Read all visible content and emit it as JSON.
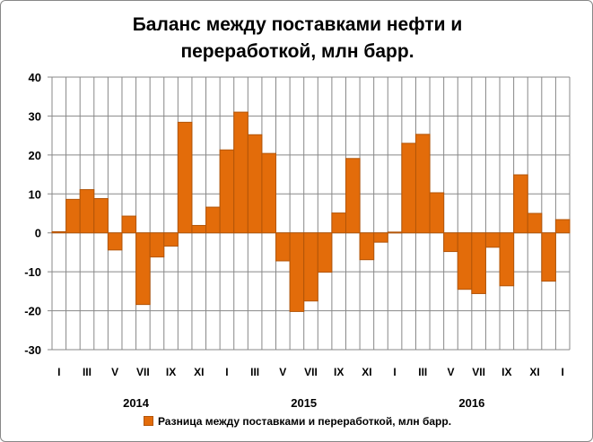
{
  "chart_data": {
    "type": "bar",
    "title": "Баланс между поставками нефти и переработкой, млн барр.",
    "title_lines": [
      "Баланс между поставками нефти и",
      "переработкой, млн барр."
    ],
    "xlabel": "",
    "ylabel": "",
    "ylim": [
      -30,
      40
    ],
    "yticks": [
      40,
      30,
      20,
      10,
      0,
      -10,
      -20,
      -30
    ],
    "grid": true,
    "legend_position": "bottom",
    "color": "#E36C0A",
    "series": [
      {
        "name": "Разница между поставками и переработкой, млн барр.",
        "values": [
          0.3,
          8.6,
          11.1,
          8.8,
          -4.4,
          4.3,
          -18.4,
          -6.2,
          -3.4,
          28.4,
          1.9,
          6.6,
          21.3,
          31.0,
          25.2,
          20.4,
          -7.2,
          -20.2,
          -17.5,
          -10.1,
          5.1,
          19.1,
          -6.9,
          -2.4,
          0.2,
          23.0,
          25.3,
          10.3,
          -4.8,
          -14.5,
          -15.6,
          -3.7,
          -13.6,
          14.9,
          5.0,
          -12.4,
          3.4
        ]
      }
    ],
    "month_labels": [
      "I",
      "",
      "III",
      "",
      "V",
      "",
      "VII",
      "",
      "IX",
      "",
      "XI",
      "",
      "I",
      "",
      "III",
      "",
      "V",
      "",
      "VII",
      "",
      "IX",
      "",
      "XI",
      "",
      "I",
      "",
      "III",
      "",
      "V",
      "",
      "VII",
      "",
      "IX",
      "",
      "XI",
      "",
      "I"
    ],
    "years": [
      {
        "label": "2014",
        "start": 0,
        "end": 11
      },
      {
        "label": "2015",
        "start": 12,
        "end": 23
      },
      {
        "label": "2016",
        "start": 24,
        "end": 35
      }
    ]
  }
}
